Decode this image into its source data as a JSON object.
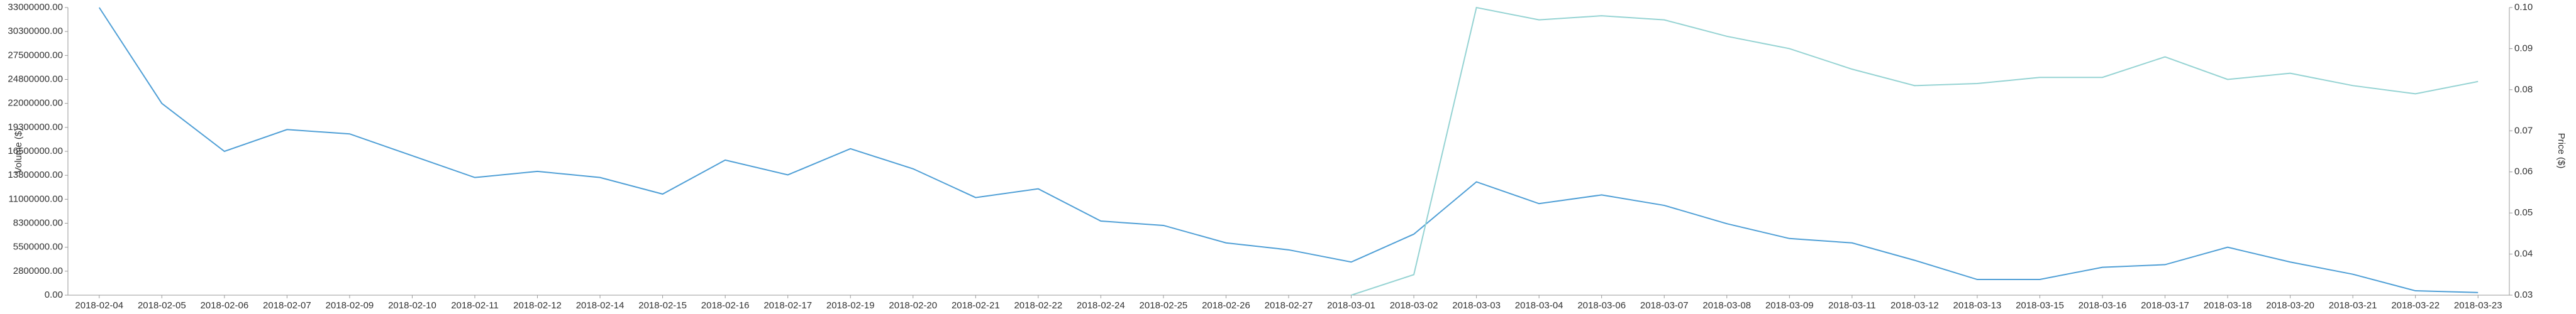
{
  "chart_data": {
    "type": "line",
    "y_label": "Volume ($)",
    "y2_label": "Price ($)",
    "categories": [
      "2018-02-04",
      "2018-02-05",
      "2018-02-06",
      "2018-02-07",
      "2018-02-09",
      "2018-02-10",
      "2018-02-11",
      "2018-02-12",
      "2018-02-14",
      "2018-02-15",
      "2018-02-16",
      "2018-02-17",
      "2018-02-19",
      "2018-02-20",
      "2018-02-21",
      "2018-02-22",
      "2018-02-24",
      "2018-02-25",
      "2018-02-26",
      "2018-02-27",
      "2018-03-01",
      "2018-03-02",
      "2018-03-03",
      "2018-03-04",
      "2018-03-06",
      "2018-03-07",
      "2018-03-08",
      "2018-03-09",
      "2018-03-11",
      "2018-03-12",
      "2018-03-13",
      "2018-03-15",
      "2018-03-16",
      "2018-03-17",
      "2018-03-18",
      "2018-03-20",
      "2018-03-21",
      "2018-03-22",
      "2018-03-23"
    ],
    "series": [
      {
        "color": "#4f9fd6",
        "axis": "y",
        "values": [
          33000000,
          22000000,
          16500000,
          19000000,
          18500000,
          16000000,
          13500000,
          14200000,
          13500000,
          11600000,
          15500000,
          13800000,
          16800000,
          14500000,
          11200000,
          12200000,
          8500000,
          8000000,
          6000000,
          5200000,
          3800000,
          7000000,
          13000000,
          10500000,
          11500000,
          10300000,
          8200000,
          6500000,
          6000000,
          4000000,
          1800000,
          1800000,
          3200000,
          3500000,
          5500000,
          3800000,
          2400000,
          500000,
          300000
        ]
      },
      {
        "color": "#95d3d3",
        "axis": "y2",
        "values": [
          null,
          null,
          null,
          null,
          null,
          null,
          null,
          null,
          null,
          null,
          null,
          null,
          null,
          null,
          null,
          null,
          null,
          null,
          null,
          null,
          0.03,
          0.035,
          0.1,
          0.097,
          0.098,
          0.097,
          0.093,
          0.09,
          0.085,
          0.081,
          0.0815,
          0.083,
          0.083,
          0.088,
          0.0825,
          0.084,
          0.081,
          0.079,
          0.082
        ]
      }
    ],
    "ylim": [
      0,
      33000000
    ],
    "yticks": [
      {
        "value": 0,
        "label": "0.00"
      },
      {
        "value": 2750000,
        "label": "2800000.00"
      },
      {
        "value": 5500000,
        "label": "5500000.00"
      },
      {
        "value": 8250000,
        "label": "8300000.00"
      },
      {
        "value": 11000000,
        "label": "11000000.00"
      },
      {
        "value": 13750000,
        "label": "13800000.00"
      },
      {
        "value": 16500000,
        "label": "16500000.00"
      },
      {
        "value": 19250000,
        "label": "19300000.00"
      },
      {
        "value": 22000000,
        "label": "22000000.00"
      },
      {
        "value": 24750000,
        "label": "24800000.00"
      },
      {
        "value": 27500000,
        "label": "27500000.00"
      },
      {
        "value": 30250000,
        "label": "30300000.00"
      },
      {
        "value": 33000000,
        "label": "33000000.00"
      }
    ],
    "y2lim": [
      0.03,
      0.1
    ],
    "y2ticks": [
      0.03,
      0.04,
      0.05,
      0.06,
      0.07,
      0.08,
      0.09,
      {
        "value": 0.1,
        "label": "0.10"
      }
    ],
    "grid": false
  }
}
